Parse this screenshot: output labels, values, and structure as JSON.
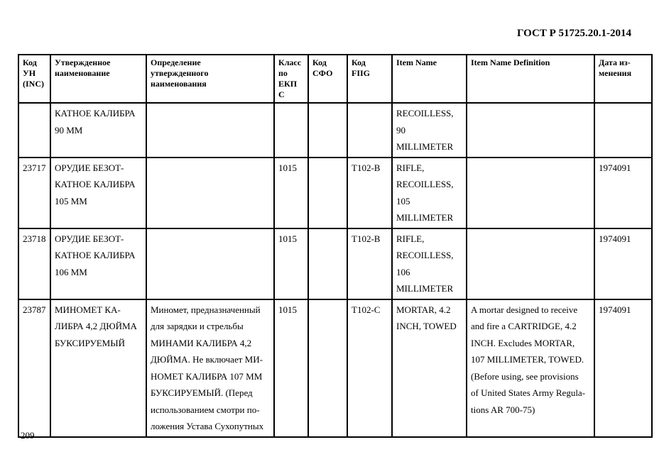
{
  "header": {
    "title": "ГОСТ Р 51725.20.1-2014"
  },
  "footer": {
    "page_number": "209"
  },
  "table": {
    "columns": [
      "Код УН (INC)",
      "Утвержденное наименование",
      "Определение утвержденного наименования",
      "Класс по ЕКП С",
      "Код СФО",
      "Код FIIG",
      "Item Name",
      "Item Name Definition",
      "Дата из-менения"
    ],
    "column_lines": [
      [
        "Код",
        "УН",
        "(INC)"
      ],
      [
        "Утвержденное",
        "наименование"
      ],
      [
        "Определение",
        "утвержденного",
        "наименования"
      ],
      [
        "Класс",
        "по",
        "ЕКП",
        "С"
      ],
      [
        "Код",
        "СФО"
      ],
      [
        "Код",
        "FIIG"
      ],
      [
        "Item Name"
      ],
      [
        "Item Name Definition"
      ],
      [
        "Дата из-",
        "менения"
      ]
    ],
    "rows": [
      {
        "cells": [
          [],
          [
            "КАТНОЕ КАЛИБРА",
            "90 ММ"
          ],
          [],
          [],
          [],
          [],
          [
            "RECOILLESS,",
            "90",
            "MILLIMETER"
          ],
          [],
          []
        ]
      },
      {
        "cells": [
          [
            "23717"
          ],
          [
            "ОРУДИЕ БЕЗОТ-",
            "КАТНОЕ КАЛИБРА",
            "105 ММ"
          ],
          [],
          [
            "1015"
          ],
          [],
          [
            "T102-B"
          ],
          [
            "RIFLE,",
            "RECOILLESS,",
            "105",
            "MILLIMETER"
          ],
          [],
          [
            "1974091"
          ]
        ]
      },
      {
        "cells": [
          [
            "23718"
          ],
          [
            "ОРУДИЕ БЕЗОТ-",
            "КАТНОЕ КАЛИБРА",
            "106 ММ"
          ],
          [],
          [
            "1015"
          ],
          [],
          [
            "T102-B"
          ],
          [
            "RIFLE,",
            "RECOILLESS,",
            "106",
            "MILLIMETER"
          ],
          [],
          [
            "1974091"
          ]
        ]
      },
      {
        "cells": [
          [
            "23787"
          ],
          [
            "МИНОМЕТ КА-",
            "ЛИБРА 4,2 ДЮЙМА",
            "БУКСИРУЕМЫЙ"
          ],
          [
            "Миномет, предназначенный",
            "для зарядки и стрельбы",
            "МИНАМИ КАЛИБРА 4,2",
            "ДЮЙМА. Не включает МИ-",
            "НОМЕТ КАЛИБРА 107 ММ",
            "БУКСИРУЕМЫЙ. (Перед",
            "использованием смотри по-",
            "ложения Устава Сухопутных"
          ],
          [
            "1015"
          ],
          [],
          [
            "T102-C"
          ],
          [
            "MORTAR, 4.2",
            "INCH, TOWED"
          ],
          [
            "A mortar designed to receive",
            "and fire a CARTRIDGE, 4.2",
            "INCH. Excludes MORTAR,",
            "107 MILLIMETER, TOWED.",
            "(Before using, see provisions",
            "of United States Army Regula-",
            "tions AR 700-75)"
          ],
          [
            "1974091"
          ]
        ]
      }
    ]
  }
}
